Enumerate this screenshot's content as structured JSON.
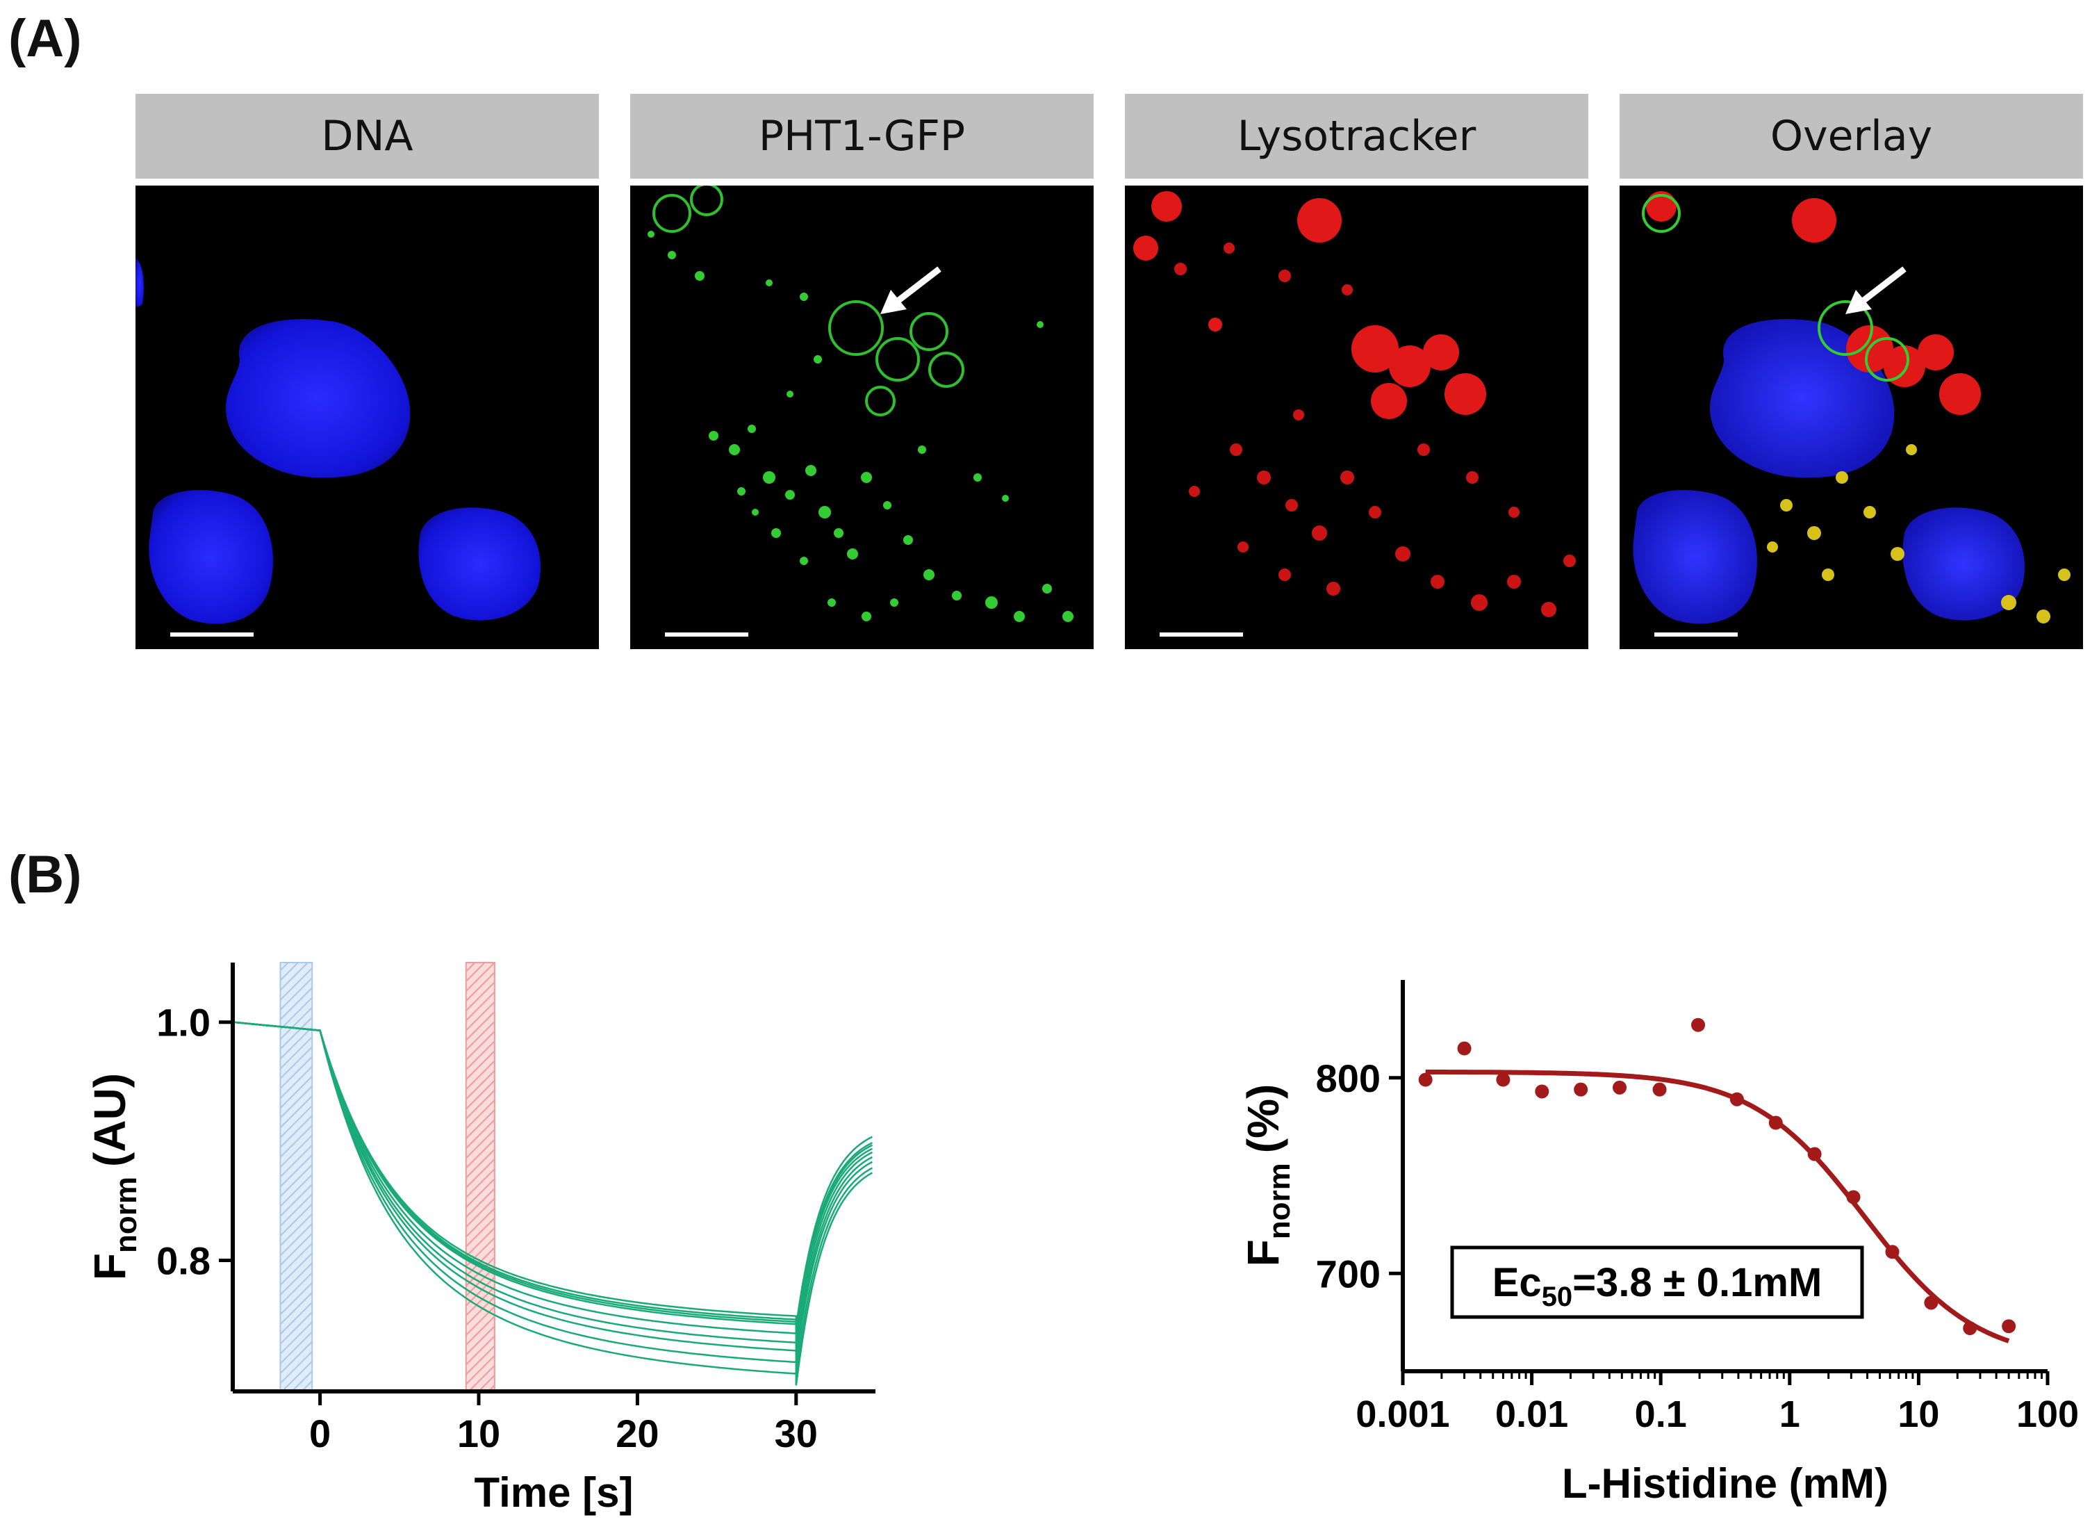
{
  "panels": {
    "a_label": "(A)",
    "b_label": "(B)"
  },
  "microscopy": [
    {
      "label": "DNA",
      "channel": "blue",
      "arrow": false
    },
    {
      "label": "PHT1-GFP",
      "channel": "green",
      "arrow": true
    },
    {
      "label": "Lysotracker",
      "channel": "red",
      "arrow": false
    },
    {
      "label": "Overlay",
      "channel": "overlay",
      "arrow": true
    }
  ],
  "chart_data": [
    {
      "type": "line",
      "xlabel": "Time [s]",
      "ylabel_main": "F",
      "ylabel_sub": "norm",
      "ylabel_unit": "(AU)",
      "xlim": [
        -5.5,
        35
      ],
      "ylim": [
        0.69,
        1.05
      ],
      "xticks": [
        0,
        10,
        20,
        30
      ],
      "yticks": [
        0.8,
        1.0
      ],
      "ytick_labels": [
        "0.8",
        "1.0"
      ],
      "line_color": "#1aaa78",
      "highlight_regions": [
        {
          "x": [
            -2.5,
            -0.5
          ],
          "color": "#a8c8ec"
        },
        {
          "x": [
            9.2,
            11.0
          ],
          "color": "#f09a9a"
        }
      ],
      "series": [
        {
          "baseline_end": 0.993,
          "plateau_30s": 0.745,
          "recovery_35s": 0.905
        },
        {
          "baseline_end": 0.993,
          "plateau_30s": 0.742,
          "recovery_35s": 0.9
        },
        {
          "baseline_end": 0.993,
          "plateau_30s": 0.74,
          "recovery_35s": 0.898
        },
        {
          "baseline_end": 0.993,
          "plateau_30s": 0.738,
          "recovery_35s": 0.895
        },
        {
          "baseline_end": 0.993,
          "plateau_30s": 0.73,
          "recovery_35s": 0.892
        },
        {
          "baseline_end": 0.993,
          "plateau_30s": 0.722,
          "recovery_35s": 0.888
        },
        {
          "baseline_end": 0.993,
          "plateau_30s": 0.715,
          "recovery_35s": 0.884
        },
        {
          "baseline_end": 0.993,
          "plateau_30s": 0.705,
          "recovery_35s": 0.879
        },
        {
          "baseline_end": 0.993,
          "plateau_30s": 0.695,
          "recovery_35s": 0.875
        }
      ]
    },
    {
      "type": "scatter",
      "xlabel": "L-Histidine (mM)",
      "ylabel_main": "F",
      "ylabel_sub": "norm",
      "ylabel_unit": "(%)",
      "x_scale": "log",
      "xlim": [
        0.001,
        100
      ],
      "ylim": [
        650,
        850
      ],
      "xticks": [
        0.001,
        0.01,
        0.1,
        1,
        10,
        100
      ],
      "xtick_labels": [
        "0.001",
        "0.01",
        "0.1",
        "1",
        "10",
        "100"
      ],
      "yticks": [
        700,
        800
      ],
      "color": "#a31a1a",
      "points": [
        {
          "x": 0.0015,
          "y": 799
        },
        {
          "x": 0.003,
          "y": 815
        },
        {
          "x": 0.006,
          "y": 799
        },
        {
          "x": 0.012,
          "y": 793
        },
        {
          "x": 0.024,
          "y": 794
        },
        {
          "x": 0.048,
          "y": 795
        },
        {
          "x": 0.098,
          "y": 794
        },
        {
          "x": 0.195,
          "y": 827
        },
        {
          "x": 0.39,
          "y": 789
        },
        {
          "x": 0.78,
          "y": 777
        },
        {
          "x": 1.56,
          "y": 761
        },
        {
          "x": 3.12,
          "y": 739
        },
        {
          "x": 6.25,
          "y": 711
        },
        {
          "x": 12.5,
          "y": 685
        },
        {
          "x": 25,
          "y": 672
        },
        {
          "x": 50,
          "y": 673
        }
      ],
      "fit": {
        "top": 803,
        "bottom": 655,
        "ec50": 3.8,
        "hill": 1.0,
        "x_range": [
          0.0015,
          50
        ]
      },
      "annotation": {
        "main": "Ec",
        "sub": "50",
        "rest": "=3.8 ± 0.1mM"
      }
    }
  ]
}
